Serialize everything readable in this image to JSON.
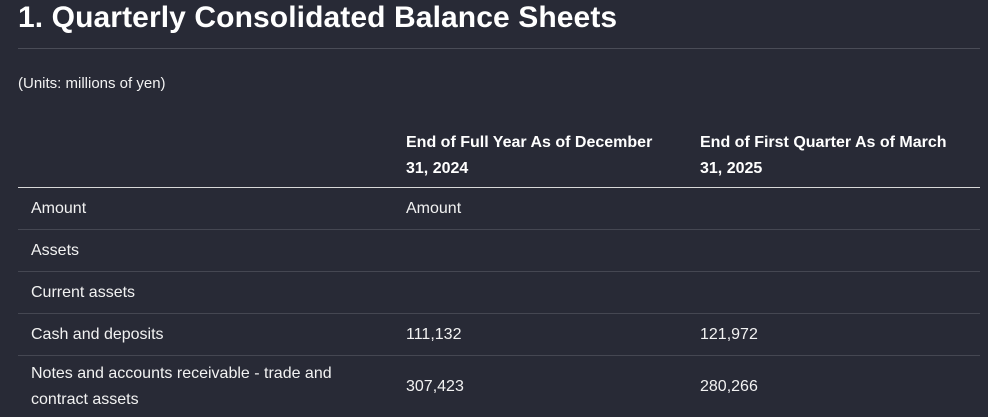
{
  "title": "1. Quarterly Consolidated Balance Sheets",
  "units_note": "(Units: millions of yen)",
  "table": {
    "headers": [
      "",
      "End of Full Year As of December 31, 2024",
      "End of First Quarter As of March 31, 2025"
    ],
    "rows": [
      [
        "Amount",
        "Amount",
        ""
      ],
      [
        "Assets",
        "",
        ""
      ],
      [
        "Current assets",
        "",
        ""
      ],
      [
        "Cash and deposits",
        "111,132",
        "121,972"
      ],
      [
        "Notes and accounts receivable - trade and contract assets",
        "307,423",
        "280,266"
      ]
    ]
  }
}
